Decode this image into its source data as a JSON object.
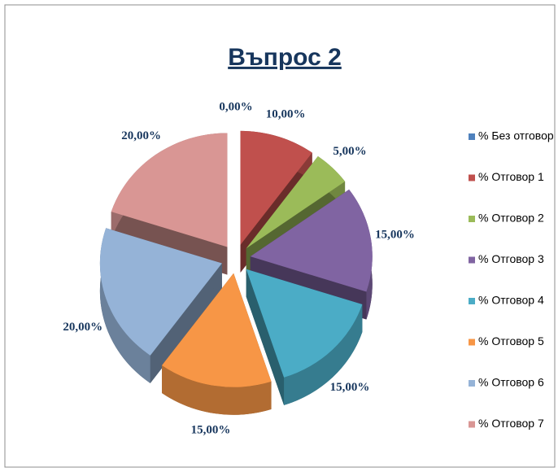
{
  "chart_data": {
    "type": "pie",
    "title": "Въпрос 2",
    "categories": [
      "% Без отговор",
      "% Отговор 1",
      "% Отговор 2",
      "% Отговор 3",
      "% Отговор 4",
      "% Отговор 5",
      "% Отговор 6",
      "% Отговор 7"
    ],
    "values": [
      0,
      10,
      5,
      15,
      15,
      15,
      20,
      20
    ],
    "value_labels": [
      "0,00%",
      "10,00%",
      "5,00%",
      "15,00%",
      "15,00%",
      "15,00%",
      "20,00%",
      "20,00%"
    ],
    "colors": [
      "#4F81BD",
      "#C0504D",
      "#9BBB59",
      "#8064A2",
      "#4BACC6",
      "#F79646",
      "#95B3D7",
      "#D99694"
    ],
    "legend": "right"
  }
}
